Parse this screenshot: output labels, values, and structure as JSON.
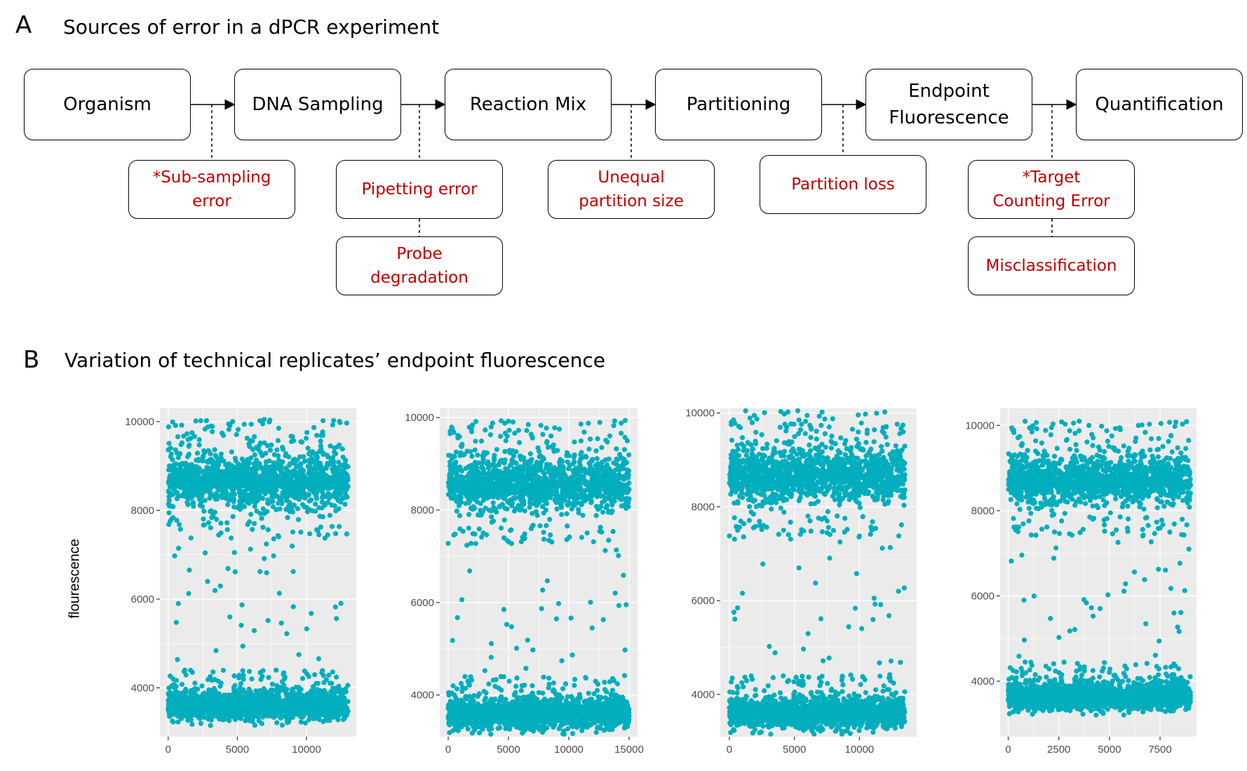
{
  "panel_a": {
    "letter": "A",
    "title": "Sources of error in a dPCR experiment",
    "steps": [
      "Organism",
      "DNA Sampling",
      "Reaction Mix",
      "Partitioning",
      "Endpoint\nFluorescence",
      "Quantification"
    ],
    "errors": [
      {
        "label": "*Sub-sampling\nerror",
        "step": 0
      },
      {
        "label": "Pipetting error",
        "step": 1
      },
      {
        "label": "Probe\ndegradation",
        "step": 1
      },
      {
        "label": "Unequal\npartition size",
        "step": 2
      },
      {
        "label": "Partition loss",
        "step": 3
      },
      {
        "label": "*Target\nCounting Error",
        "step": 4
      },
      {
        "label": "Misclassification",
        "step": 4
      }
    ],
    "error_color": "#c00000"
  },
  "panel_b": {
    "letter": "B",
    "title": "Variation of technical replicates’ endpoint fluorescence",
    "ylabel": "flourescence",
    "point_color": "#00aebd",
    "panel_bg": "#ebebeb"
  },
  "chart_data": [
    {
      "type": "scatter",
      "ylabel": "flourescence",
      "xlim": [
        -600,
        13600
      ],
      "ylim": [
        2900,
        10300
      ],
      "xticks": [
        0,
        5000,
        10000
      ],
      "yticks": [
        4000,
        6000,
        8000,
        10000
      ],
      "n_partitions": 13000,
      "clusters": [
        {
          "name": "",
          "y_center": 8650,
          "y_spread": 350
        },
        {
          "name": "",
          "y_center": 3600,
          "y_spread": 200
        }
      ]
    },
    {
      "type": "scatter",
      "ylabel": "",
      "xlim": [
        -700,
        15700
      ],
      "ylim": [
        3100,
        10200
      ],
      "xticks": [
        0,
        5000,
        10000,
        15000
      ],
      "yticks": [
        4000,
        6000,
        8000,
        10000
      ],
      "n_partitions": 15000,
      "clusters": [
        {
          "name": "",
          "y_center": 8550,
          "y_spread": 350
        },
        {
          "name": "",
          "y_center": 3600,
          "y_spread": 200
        }
      ]
    },
    {
      "type": "scatter",
      "ylabel": "",
      "xlim": [
        -700,
        14400
      ],
      "ylim": [
        3100,
        10100
      ],
      "xticks": [
        0,
        5000,
        10000
      ],
      "yticks": [
        4000,
        6000,
        8000,
        10000
      ],
      "n_partitions": 13500,
      "clusters": [
        {
          "name": "",
          "y_center": 8650,
          "y_spread": 330
        },
        {
          "name": "",
          "y_center": 3600,
          "y_spread": 200
        }
      ]
    },
    {
      "type": "scatter",
      "ylabel": "",
      "xlim": [
        -400,
        9300
      ],
      "ylim": [
        2700,
        10400
      ],
      "xticks": [
        0,
        2500,
        5000,
        7500
      ],
      "yticks": [
        4000,
        6000,
        8000,
        10000
      ],
      "n_partitions": 9000,
      "clusters": [
        {
          "name": "",
          "y_center": 8700,
          "y_spread": 330
        },
        {
          "name": "",
          "y_center": 3650,
          "y_spread": 200
        }
      ]
    }
  ]
}
